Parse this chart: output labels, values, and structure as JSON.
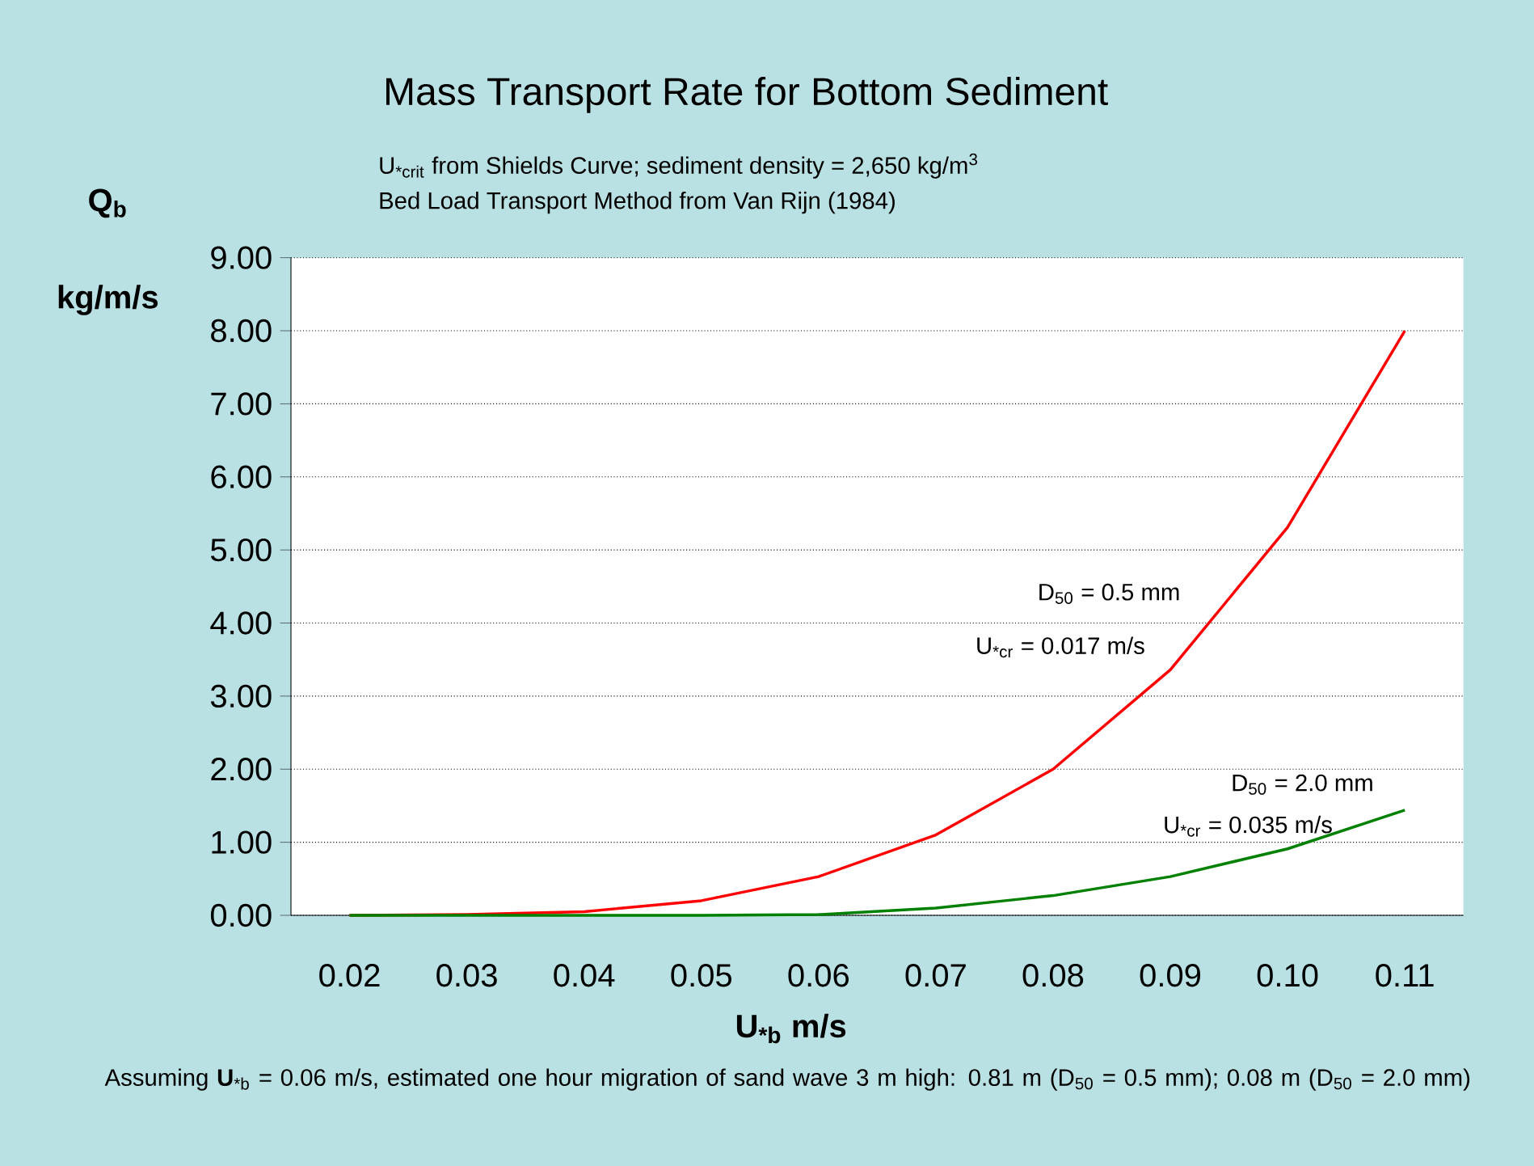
{
  "chart_data": {
    "type": "line",
    "title": "Mass Transport Rate for Bottom Sediment",
    "subtitle": "U$_{*crit}$ from Shields Curve; sediment density = 2,650 kg/m$^{3}$",
    "xlabel": "U$_{*b}$  m/s",
    "ylabel": "Q$_{b}$ kg/m/s",
    "categories": [
      "0.02",
      "0.03",
      "0.04",
      "0.05",
      "0.06",
      "0.07",
      "0.08",
      "0.09",
      "0.10",
      "0.11"
    ],
    "series": [
      {
        "name": "D$_{50}$ = 0.5 mm",
        "color": "#ff0000",
        "values": [
          0,
          0.01,
          0.05,
          0.2,
          0.53,
          1.1,
          2.0,
          3.36,
          5.31,
          8.0
        ]
      },
      {
        "name": "D$_{50}$ = 2.0 mm",
        "color": "#008000",
        "values": [
          0,
          0,
          0,
          0,
          0.01,
          0.1,
          0.27,
          0.53,
          0.91,
          1.44
        ]
      }
    ],
    "ylim": [
      0,
      9
    ],
    "yticks": [
      {
        "value": 0,
        "label": "0.00"
      },
      {
        "value": 1,
        "label": "1.00"
      },
      {
        "value": 2,
        "label": "2.00"
      },
      {
        "value": 3,
        "label": "3.00"
      },
      {
        "value": 4,
        "label": "4.00"
      },
      {
        "value": 5,
        "label": "5.00"
      },
      {
        "value": 6,
        "label": "6.00"
      },
      {
        "value": 7,
        "label": "7.00"
      },
      {
        "value": 8,
        "label": "8.00"
      },
      {
        "value": 9,
        "label": "9.00"
      }
    ],
    "grid": "y",
    "marker": "none",
    "line_style": "solid",
    "annotations": [
      "Bed Load Transport Method from Van Rijn (1984)",
      "U$_{*cr}$ = 0.017 m/s",
      "U$_{*cr}$ = 0.035 m/s",
      "Assuming **U**$_{*b}$ = 0.06 m/s, estimated one hour migration of sand wave 3 m high: 0.81 m (D$_{50}$ = 0.5 mm); 0.08 m (D$_{50}$ = 2.0 mm)"
    ]
  }
}
